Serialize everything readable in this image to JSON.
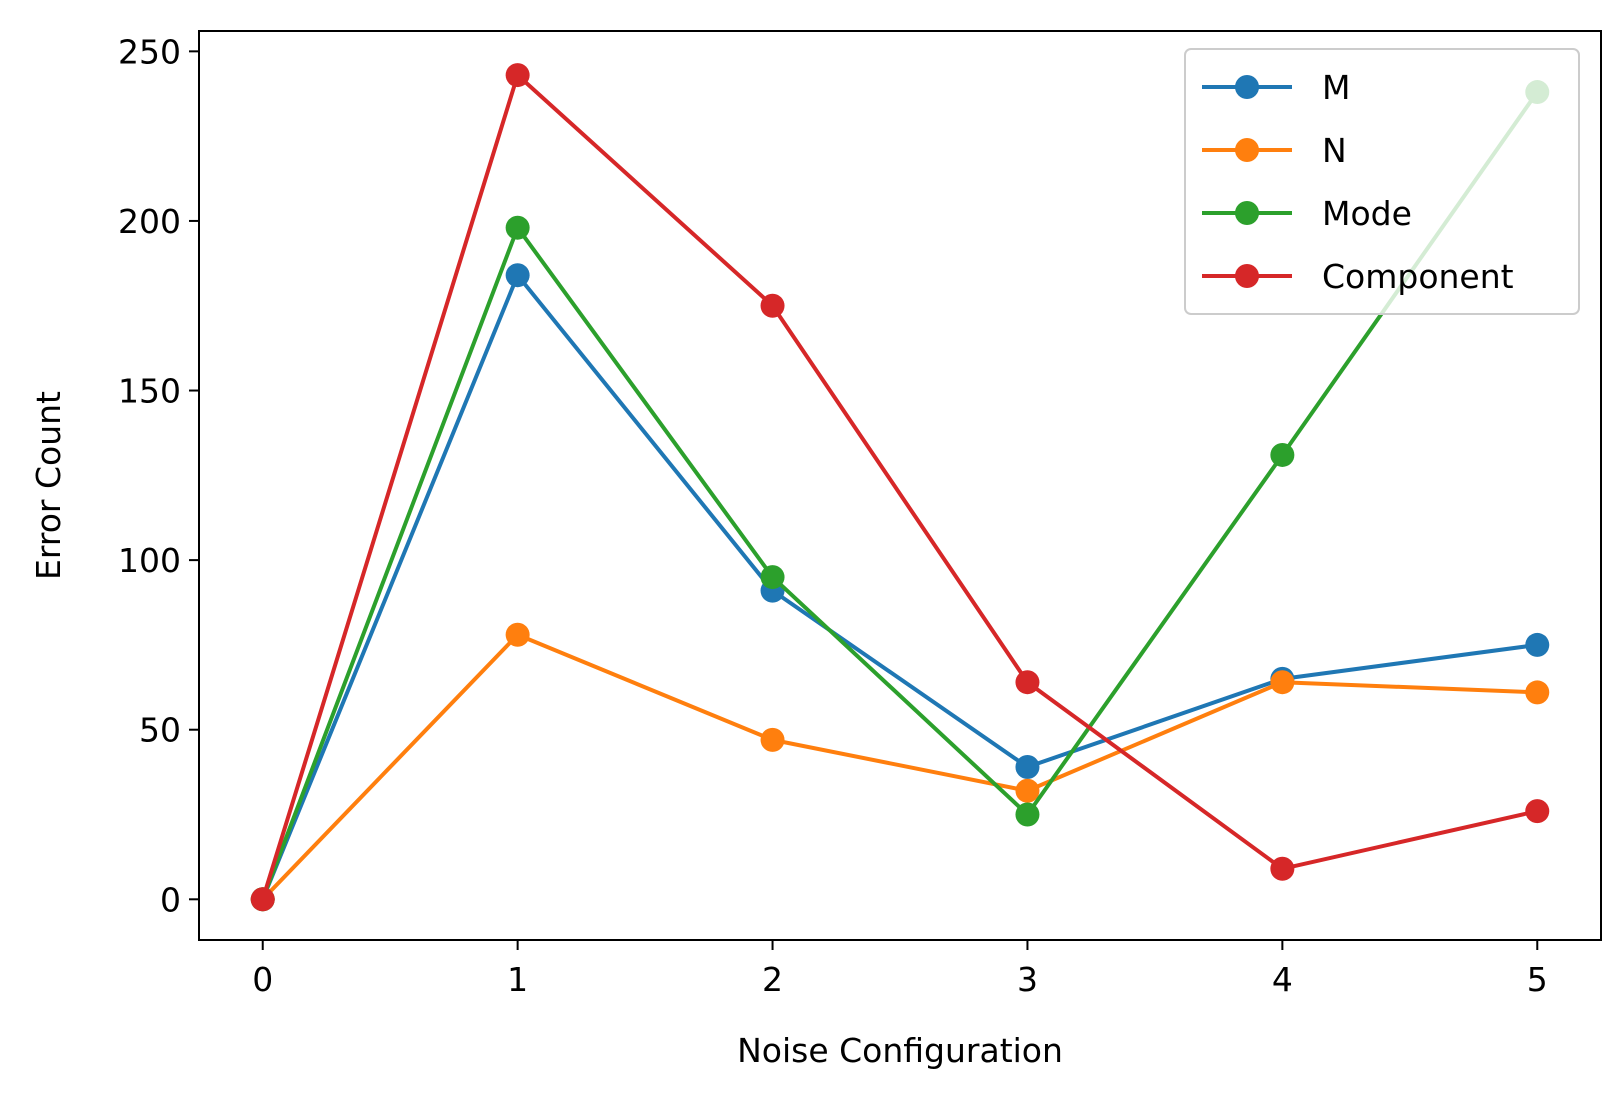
{
  "chart_data": {
    "type": "line",
    "title": "",
    "xlabel": "Noise Configuration",
    "ylabel": "Error Count",
    "x": [
      0,
      1,
      2,
      3,
      4,
      5
    ],
    "xlim": [
      -0.25,
      5.25
    ],
    "ylim": [
      -12,
      256
    ],
    "xticks": [
      0,
      1,
      2,
      3,
      4,
      5
    ],
    "yticks": [
      0,
      50,
      100,
      150,
      200,
      250
    ],
    "grid": false,
    "legend_position": "top-right",
    "series": [
      {
        "name": "M",
        "color": "#1f77b4",
        "values": [
          0,
          184,
          91,
          39,
          65,
          75
        ]
      },
      {
        "name": "N",
        "color": "#ff7f0e",
        "values": [
          0,
          78,
          47,
          32,
          64,
          61
        ]
      },
      {
        "name": "Mode",
        "color": "#2ca02c",
        "values": [
          0,
          198,
          95,
          25,
          131,
          238
        ]
      },
      {
        "name": "Component",
        "color": "#d62728",
        "values": [
          0,
          243,
          175,
          64,
          9,
          26
        ]
      }
    ]
  }
}
